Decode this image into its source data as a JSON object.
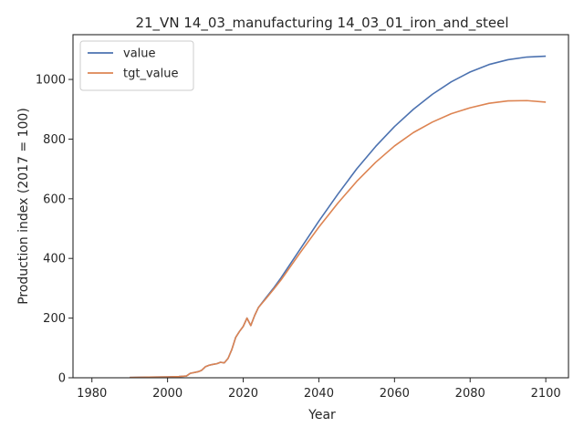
{
  "chart_data": {
    "type": "line",
    "title": "21_VN 14_03_manufacturing 14_03_01_iron_and_steel",
    "xlabel": "Year",
    "ylabel": "Production index (2017 = 100)",
    "xlim": [
      1975,
      2106
    ],
    "ylim": [
      0,
      1150
    ],
    "xticks": [
      1980,
      2000,
      2020,
      2040,
      2060,
      2080,
      2100
    ],
    "yticks": [
      0,
      200,
      400,
      600,
      800,
      1000
    ],
    "grid": false,
    "legend_position": "top-left",
    "series": [
      {
        "name": "value",
        "color": "#4c72b0",
        "x": [
          1990,
          1995,
          2000,
          2003,
          2005,
          2006,
          2008,
          2009,
          2010,
          2011,
          2012,
          2013,
          2014,
          2015,
          2016,
          2017,
          2018,
          2019,
          2020,
          2021,
          2022,
          2023,
          2024,
          2026,
          2028,
          2030,
          2035,
          2040,
          2045,
          2050,
          2055,
          2060,
          2065,
          2070,
          2075,
          2080,
          2085,
          2090,
          2095,
          2100
        ],
        "y": [
          1,
          2,
          3,
          4,
          6,
          15,
          20,
          25,
          37,
          42,
          45,
          47,
          52,
          50,
          65,
          95,
          135,
          155,
          172,
          200,
          175,
          208,
          235,
          268,
          300,
          335,
          430,
          525,
          615,
          700,
          775,
          842,
          900,
          950,
          992,
          1025,
          1050,
          1066,
          1075,
          1078
        ]
      },
      {
        "name": "tgt_value",
        "color": "#dd8452",
        "x": [
          1990,
          1995,
          2000,
          2003,
          2005,
          2006,
          2008,
          2009,
          2010,
          2011,
          2012,
          2013,
          2014,
          2015,
          2016,
          2017,
          2018,
          2019,
          2020,
          2021,
          2022,
          2023,
          2024,
          2026,
          2028,
          2030,
          2035,
          2040,
          2045,
          2050,
          2055,
          2060,
          2065,
          2070,
          2075,
          2080,
          2085,
          2090,
          2095,
          2100
        ],
        "y": [
          1,
          2,
          3,
          4,
          6,
          15,
          20,
          25,
          37,
          42,
          45,
          47,
          52,
          50,
          65,
          95,
          135,
          155,
          172,
          200,
          175,
          208,
          235,
          265,
          296,
          328,
          418,
          505,
          585,
          658,
          722,
          777,
          822,
          857,
          885,
          905,
          920,
          928,
          929,
          924
        ]
      }
    ]
  }
}
